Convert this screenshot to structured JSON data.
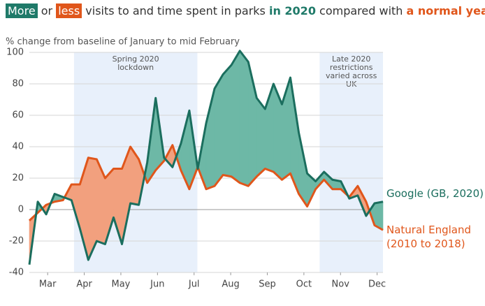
{
  "chart_data": {
    "type": "line",
    "title_parts": [
      "More",
      " or ",
      "less",
      " visits to and time spent in parks ",
      "in 2020",
      " compared with ",
      "a normal year",
      "."
    ],
    "y_label": "% change from baseline of January to mid February",
    "x": [
      2.5,
      2.73,
      2.96,
      3.19,
      3.42,
      3.65,
      3.88,
      4.11,
      4.34,
      4.57,
      4.8,
      5.03,
      5.26,
      5.49,
      5.72,
      5.95,
      6.18,
      6.41,
      6.64,
      6.87,
      7.1,
      7.33,
      7.56,
      7.79,
      8.02,
      8.25,
      8.48,
      8.71,
      8.94,
      9.17,
      9.4,
      9.63,
      9.86,
      10.09,
      10.32,
      10.55,
      10.78,
      11.01,
      11.24,
      11.47,
      11.7,
      11.93,
      12.16
    ],
    "series": [
      {
        "name": "Google (GB, 2020)",
        "color": "#1b6e5e",
        "fill": "#6db8a6",
        "values": [
          -35,
          5,
          -3,
          10,
          8,
          6,
          -12,
          -32,
          -20,
          -22,
          -5,
          -22,
          4,
          3,
          30,
          71,
          33,
          27,
          42,
          63,
          26,
          55,
          77,
          86,
          92,
          101,
          94,
          71,
          64,
          80,
          67,
          84,
          49,
          23,
          18,
          24,
          19,
          18,
          7,
          9,
          -4,
          4,
          5
        ]
      },
      {
        "name": "Natural England (2010 to 2018)",
        "color": "#e0561b",
        "fill": "#f2a07e",
        "values": [
          -7,
          -2,
          3,
          5,
          6,
          16,
          16,
          33,
          32,
          20,
          26,
          26,
          40,
          32,
          17,
          25,
          31,
          41,
          25,
          13,
          27,
          13,
          15,
          22,
          21,
          17,
          15,
          21,
          26,
          24,
          19,
          23,
          10,
          2,
          13,
          19,
          13,
          13,
          8,
          15,
          5,
          -10,
          -13
        ]
      }
    ],
    "bands": [
      {
        "from": 3.72,
        "to": 7.09,
        "label_lines": [
          "Spring 2020",
          "lockdown"
        ]
      },
      {
        "from": 10.43,
        "to": 12.16,
        "label_lines": [
          "Late 2020",
          "restrictions",
          "varied across",
          "UK"
        ]
      }
    ],
    "xlim": [
      2.5,
      12.16
    ],
    "xticks": [
      {
        "value": 3,
        "label": "Mar"
      },
      {
        "value": 4,
        "label": "Apr"
      },
      {
        "value": 5,
        "label": "May"
      },
      {
        "value": 6,
        "label": "Jun"
      },
      {
        "value": 7,
        "label": "Jul"
      },
      {
        "value": 8,
        "label": "Aug"
      },
      {
        "value": 9,
        "label": "Sep"
      },
      {
        "value": 10,
        "label": "Oct"
      },
      {
        "value": 11,
        "label": "Nov"
      },
      {
        "value": 12,
        "label": "Dec"
      }
    ],
    "ylim": [
      -40,
      100
    ],
    "yticks": [
      -40,
      -20,
      0,
      20,
      40,
      60,
      80,
      100
    ],
    "grid": true
  }
}
